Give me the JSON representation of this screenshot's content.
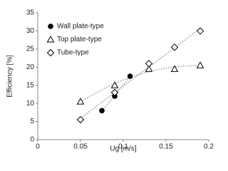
{
  "chart_data": {
    "type": "scatter",
    "xlabel": "Ug [m/s]",
    "ylabel": "Efficiency [%]",
    "xlim": [
      0,
      0.2
    ],
    "xticks": [
      0,
      0.05,
      0.1,
      0.15,
      0.2
    ],
    "ylim": [
      0,
      35
    ],
    "yticks": [
      0,
      5,
      10,
      15,
      20,
      25,
      30,
      35
    ],
    "legend": "upper left",
    "series": [
      {
        "name": "Wall plate-type",
        "color": "#000000",
        "marker": "circle",
        "trendline": "linear",
        "x": [
          0.075,
          0.09,
          0.108
        ],
        "values": [
          8,
          12,
          17.5
        ]
      },
      {
        "name": "Top plate-type",
        "color": "#000000",
        "marker": "triangle",
        "trendline": "polynomial",
        "x": [
          0.05,
          0.09,
          0.13,
          0.16,
          0.19
        ],
        "values": [
          10.5,
          15,
          19.5,
          19.5,
          20.5
        ]
      },
      {
        "name": "Tube-type",
        "color": "#000000",
        "marker": "diamond",
        "trendline": "linear",
        "x": [
          0.05,
          0.09,
          0.13,
          0.16,
          0.19
        ],
        "values": [
          5.5,
          13,
          21,
          25.5,
          30
        ]
      }
    ]
  }
}
